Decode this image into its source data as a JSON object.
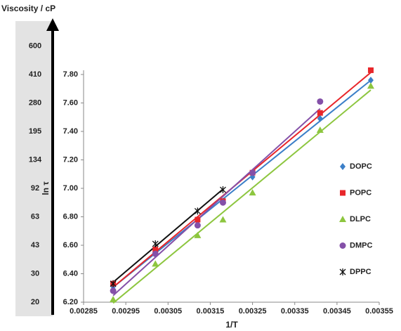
{
  "chart_data": {
    "type": "scatter",
    "x_label": "1/T",
    "y_label": "ln τ",
    "xlim": [
      0.00285,
      0.00355
    ],
    "xticks": [
      0.00285,
      0.00295,
      0.00305,
      0.00315,
      0.00325,
      0.00335,
      0.00345,
      0.00355
    ],
    "ylim": [
      6.2,
      7.8
    ],
    "yticks": [
      {
        "value": 6.2,
        "label": "6.20"
      },
      {
        "value": 6.4,
        "label": "6.40"
      },
      {
        "value": 6.6,
        "label": "6.60"
      },
      {
        "value": 6.8,
        "label": "6.80"
      },
      {
        "value": 7.0,
        "label": "7.00"
      },
      {
        "value": 7.2,
        "label": "7.20"
      },
      {
        "value": 7.4,
        "label": "7.40"
      },
      {
        "value": 7.6,
        "label": "7.60"
      },
      {
        "value": 7.8,
        "label": "7.80"
      }
    ],
    "grid": false,
    "legend": "right",
    "trendlines": true,
    "series": [
      {
        "name": "DOPC",
        "color": "#3c7fc8",
        "marker": "diamond",
        "x": [
          0.00292,
          0.00302,
          0.00312,
          0.00318,
          0.00325,
          0.00341,
          0.00353
        ],
        "values": [
          6.31,
          6.56,
          6.77,
          6.91,
          7.08,
          7.49,
          7.76
        ]
      },
      {
        "name": "POPC",
        "color": "#e8262a",
        "marker": "square",
        "x": [
          0.00292,
          0.00302,
          0.00312,
          0.00318,
          0.00325,
          0.00341,
          0.00353
        ],
        "values": [
          6.33,
          6.57,
          6.78,
          6.91,
          7.11,
          7.53,
          7.83
        ]
      },
      {
        "name": "DLPC",
        "color": "#8dc63f",
        "marker": "triangle",
        "x": [
          0.00292,
          0.00302,
          0.00312,
          0.00318,
          0.00325,
          0.00341,
          0.00353
        ],
        "values": [
          6.22,
          6.47,
          6.67,
          6.78,
          6.97,
          7.41,
          7.72
        ]
      },
      {
        "name": "DMPC",
        "color": "#8450a8",
        "marker": "circle",
        "x": [
          0.00292,
          0.00302,
          0.00312,
          0.00318,
          0.00325,
          0.00341
        ],
        "values": [
          6.28,
          6.54,
          6.74,
          6.9,
          7.11,
          7.61
        ]
      },
      {
        "name": "DPPC",
        "color": "#111111",
        "marker": "asterisk",
        "x": [
          0.00292,
          0.00302,
          0.00312,
          0.00318
        ],
        "values": [
          6.33,
          6.61,
          6.84,
          6.99
        ]
      }
    ]
  },
  "viscosity_axis": {
    "title": "Viscosity / cP",
    "labels": [
      20,
      30,
      43,
      63,
      92,
      134,
      195,
      280,
      410,
      600
    ]
  }
}
